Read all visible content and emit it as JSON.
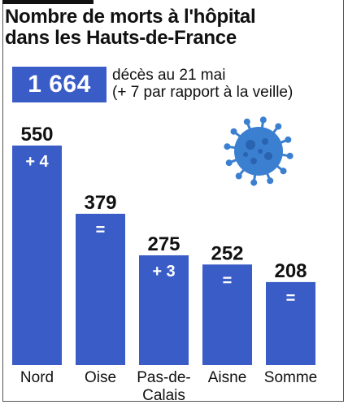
{
  "header": {
    "title_line1": "Nombre de morts à l'hôpital",
    "title_line2": "dans les Hauts-de-France"
  },
  "total": {
    "value": "1 664",
    "caption_line1": "décès au 21 mai",
    "caption_line2": "(+ 7 par rapport à la veille)"
  },
  "colors": {
    "bar": "#3a5cc6",
    "virus": "#3a7fd0",
    "text": "#111111"
  },
  "icon": "coronavirus-icon",
  "chart_data": {
    "type": "bar",
    "categories": [
      "Nord",
      "Oise",
      "Pas-de-Calais",
      "Aisne",
      "Somme"
    ],
    "category_labels": [
      [
        "Nord"
      ],
      [
        "Oise"
      ],
      [
        "Pas-de-",
        "Calais"
      ],
      [
        "Aisne"
      ],
      [
        "Somme"
      ]
    ],
    "values": [
      550,
      379,
      275,
      252,
      208
    ],
    "value_labels": [
      "550",
      "379",
      "275",
      "252",
      "208"
    ],
    "changes": [
      "+ 4",
      "=",
      "+ 3",
      "=",
      "="
    ],
    "ylim": [
      0,
      550
    ]
  }
}
